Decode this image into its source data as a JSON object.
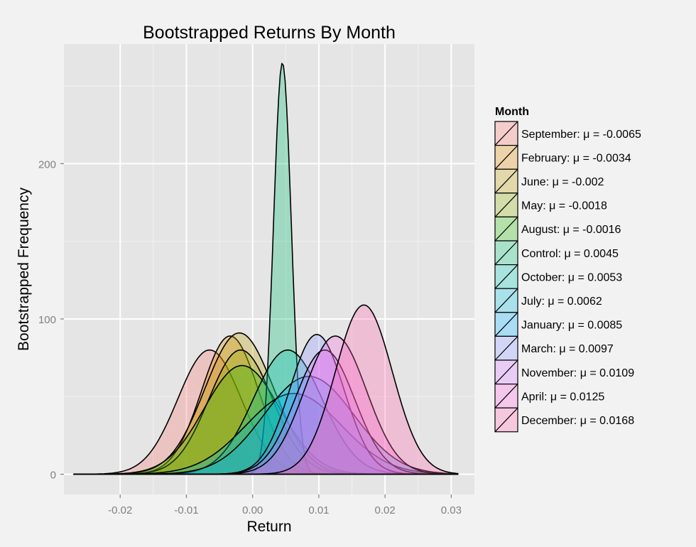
{
  "chart_data": {
    "type": "area",
    "title": "Bootstrapped Returns By Month",
    "xlabel": "Return",
    "ylabel": "Bootstrapped Frequency",
    "xlim": [
      -0.0285,
      0.0335
    ],
    "ylim": [
      -13,
      277
    ],
    "x_ticks": [
      -0.02,
      -0.01,
      0.0,
      0.01,
      0.02,
      0.03
    ],
    "x_tick_labels": [
      "-0.02",
      "-0.01",
      "0.00",
      "0.01",
      "0.02",
      "0.03"
    ],
    "y_ticks": [
      0,
      100,
      200
    ],
    "y_tick_labels": [
      "0",
      "100",
      "200"
    ],
    "grid": true,
    "legend": {
      "title": "Month",
      "position": "right",
      "labels": [
        "September: μ = -0.0065",
        "February: μ = -0.0034",
        "June: μ = -0.002",
        "May: μ = -0.0018",
        "August: μ = -0.0016",
        "Control: μ = 0.0045",
        "October: μ = 0.0053",
        "July: μ = 0.0062",
        "January: μ = 0.0085",
        "March: μ = 0.0097",
        "November: μ = 0.0109",
        "April: μ = 0.0125",
        "December: μ = 0.0168"
      ]
    },
    "series": [
      {
        "name": "September",
        "mean": -0.0065,
        "sd": 0.0048,
        "peak": 80,
        "color": "#F8766D"
      },
      {
        "name": "February",
        "mean": -0.0034,
        "sd": 0.0043,
        "peak": 89,
        "color": "#E18A00"
      },
      {
        "name": "June",
        "mean": -0.002,
        "sd": 0.0052,
        "peak": 91,
        "color": "#BE9C00"
      },
      {
        "name": "May",
        "mean": -0.0018,
        "sd": 0.0048,
        "peak": 80,
        "color": "#8CAB00"
      },
      {
        "name": "August",
        "mean": -0.0016,
        "sd": 0.0057,
        "peak": 70,
        "color": "#24B700"
      },
      {
        "name": "Control",
        "mean": 0.0045,
        "sd": 0.00135,
        "peak": 265,
        "color": "#00BE70"
      },
      {
        "name": "October",
        "mean": 0.0053,
        "sd": 0.0052,
        "peak": 80,
        "color": "#00C1AB"
      },
      {
        "name": "July",
        "mean": 0.0062,
        "sd": 0.0072,
        "peak": 52,
        "color": "#00BBDA"
      },
      {
        "name": "January",
        "mean": 0.0085,
        "sd": 0.0068,
        "peak": 63,
        "color": "#00ACFC"
      },
      {
        "name": "March",
        "mean": 0.0097,
        "sd": 0.0041,
        "peak": 90,
        "color": "#8B93FF"
      },
      {
        "name": "November",
        "mean": 0.0109,
        "sd": 0.0045,
        "peak": 80,
        "color": "#D575FE"
      },
      {
        "name": "April",
        "mean": 0.0125,
        "sd": 0.0047,
        "peak": 89,
        "color": "#F962DD"
      },
      {
        "name": "December",
        "mean": 0.0168,
        "sd": 0.0043,
        "peak": 109,
        "color": "#FF65AC"
      }
    ]
  }
}
